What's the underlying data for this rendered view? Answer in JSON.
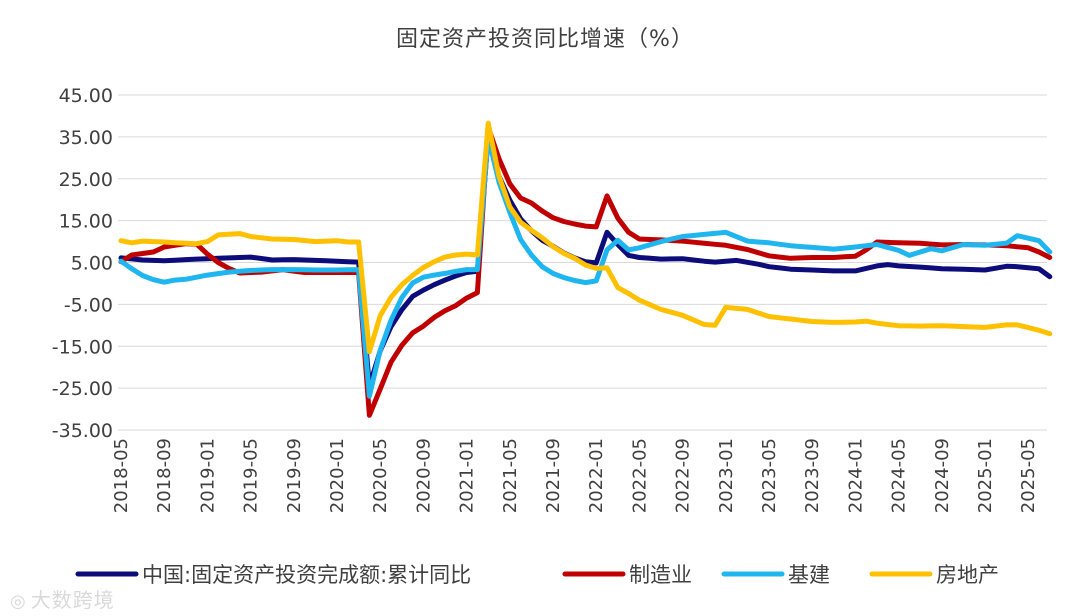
{
  "chart_data": {
    "type": "line",
    "title": "固定资产投资同比增速（%）",
    "xlabel": "",
    "ylabel": "",
    "ylim": [
      -35,
      45
    ],
    "y_ticks": [
      "45.00",
      "35.00",
      "25.00",
      "15.00",
      "5.00",
      "-5.00",
      "-15.00",
      "-25.00",
      "-35.00"
    ],
    "x_ticks": [
      "2018-05",
      "2018-09",
      "2019-01",
      "2019-05",
      "2019-09",
      "2020-01",
      "2020-05",
      "2020-09",
      "2021-01",
      "2021-05",
      "2021-09",
      "2022-01",
      "2022-05",
      "2022-09",
      "2023-01",
      "2023-05",
      "2023-09",
      "2024-01",
      "2024-05",
      "2024-09",
      "2025-01",
      "2025-05"
    ],
    "start_month": "2018-05",
    "n_points": 87,
    "gridlines": true,
    "legend_position": "bottom",
    "series": [
      {
        "name": "中国:固定资产投资完成额:累计同比",
        "color": "#0c0c7a",
        "anchors": [
          [
            0,
            6.1
          ],
          [
            2,
            5.6
          ],
          [
            4,
            5.4
          ],
          [
            6,
            5.7
          ],
          [
            8,
            5.9
          ],
          [
            10,
            6.1
          ],
          [
            12,
            6.3
          ],
          [
            14,
            5.6
          ],
          [
            16,
            5.7
          ],
          [
            18,
            5.5
          ],
          [
            20,
            5.3
          ],
          [
            21,
            5.2
          ],
          [
            22,
            5.1
          ],
          [
            23,
            -24.5
          ],
          [
            24,
            -16.1
          ],
          [
            25,
            -10.3
          ],
          [
            26,
            -6.3
          ],
          [
            27,
            -3.1
          ],
          [
            28,
            -1.6
          ],
          [
            29,
            -0.3
          ],
          [
            30,
            0.8
          ],
          [
            31,
            1.8
          ],
          [
            32,
            2.6
          ],
          [
            33,
            2.9
          ],
          [
            34,
            35.0
          ],
          [
            35,
            25.6
          ],
          [
            36,
            19.9
          ],
          [
            37,
            15.4
          ],
          [
            38,
            12.6
          ],
          [
            39,
            10.3
          ],
          [
            40,
            8.9
          ],
          [
            41,
            7.3
          ],
          [
            42,
            6.1
          ],
          [
            43,
            5.2
          ],
          [
            44,
            4.9
          ],
          [
            45,
            12.2
          ],
          [
            46,
            9.3
          ],
          [
            47,
            6.7
          ],
          [
            48,
            6.2
          ],
          [
            50,
            5.8
          ],
          [
            52,
            5.9
          ],
          [
            54,
            5.3
          ],
          [
            55,
            5.1
          ],
          [
            57,
            5.5
          ],
          [
            59,
            4.6
          ],
          [
            60,
            4.0
          ],
          [
            62,
            3.4
          ],
          [
            64,
            3.2
          ],
          [
            66,
            3.0
          ],
          [
            68,
            3.0
          ],
          [
            70,
            4.2
          ],
          [
            71,
            4.5
          ],
          [
            72,
            4.2
          ],
          [
            74,
            3.9
          ],
          [
            76,
            3.5
          ],
          [
            78,
            3.4
          ],
          [
            80,
            3.2
          ],
          [
            82,
            4.1
          ],
          [
            83,
            4.0
          ],
          [
            85,
            3.5
          ],
          [
            86,
            1.6
          ]
        ]
      },
      {
        "name": "制造业",
        "color": "#c00000",
        "anchors": [
          [
            0,
            5.2
          ],
          [
            1,
            6.8
          ],
          [
            3,
            7.5
          ],
          [
            4,
            8.7
          ],
          [
            6,
            9.5
          ],
          [
            7,
            9.4
          ],
          [
            8,
            7.0
          ],
          [
            9,
            5.0
          ],
          [
            10,
            3.6
          ],
          [
            11,
            2.5
          ],
          [
            13,
            2.7
          ],
          [
            15,
            3.3
          ],
          [
            17,
            2.6
          ],
          [
            19,
            2.6
          ],
          [
            21,
            2.6
          ],
          [
            22,
            2.6
          ],
          [
            23,
            -31.5
          ],
          [
            24,
            -25.2
          ],
          [
            25,
            -18.8
          ],
          [
            26,
            -14.8
          ],
          [
            27,
            -11.8
          ],
          [
            28,
            -10.2
          ],
          [
            29,
            -8.1
          ],
          [
            30,
            -6.5
          ],
          [
            31,
            -5.3
          ],
          [
            32,
            -3.5
          ],
          [
            33,
            -2.2
          ],
          [
            34,
            37.3
          ],
          [
            35,
            29.8
          ],
          [
            36,
            23.8
          ],
          [
            37,
            20.4
          ],
          [
            38,
            19.2
          ],
          [
            39,
            17.3
          ],
          [
            40,
            15.7
          ],
          [
            41,
            14.8
          ],
          [
            42,
            14.2
          ],
          [
            43,
            13.7
          ],
          [
            44,
            13.5
          ],
          [
            45,
            20.9
          ],
          [
            46,
            15.6
          ],
          [
            47,
            12.2
          ],
          [
            48,
            10.6
          ],
          [
            50,
            10.4
          ],
          [
            52,
            10.1
          ],
          [
            54,
            9.6
          ],
          [
            56,
            9.1
          ],
          [
            58,
            8.1
          ],
          [
            60,
            6.6
          ],
          [
            62,
            6.0
          ],
          [
            64,
            6.2
          ],
          [
            66,
            6.2
          ],
          [
            68,
            6.5
          ],
          [
            69,
            8.0
          ],
          [
            70,
            9.9
          ],
          [
            72,
            9.7
          ],
          [
            74,
            9.6
          ],
          [
            76,
            9.2
          ],
          [
            78,
            9.3
          ],
          [
            80,
            9.2
          ],
          [
            82,
            9.0
          ],
          [
            84,
            8.5
          ],
          [
            85,
            7.5
          ],
          [
            86,
            6.2
          ]
        ]
      },
      {
        "name": "基建",
        "color": "#1fb5ee",
        "anchors": [
          [
            0,
            5.3
          ],
          [
            1,
            3.5
          ],
          [
            2,
            1.9
          ],
          [
            3,
            0.9
          ],
          [
            4,
            0.3
          ],
          [
            5,
            0.8
          ],
          [
            6,
            1.0
          ],
          [
            8,
            2.0
          ],
          [
            10,
            2.7
          ],
          [
            12,
            3.1
          ],
          [
            14,
            3.3
          ],
          [
            16,
            3.3
          ],
          [
            18,
            3.2
          ],
          [
            20,
            3.2
          ],
          [
            22,
            3.3
          ],
          [
            23,
            -26.9
          ],
          [
            24,
            -16.0
          ],
          [
            25,
            -8.8
          ],
          [
            26,
            -3.4
          ],
          [
            27,
            0.1
          ],
          [
            28,
            1.5
          ],
          [
            29,
            2.0
          ],
          [
            30,
            2.4
          ],
          [
            31,
            2.9
          ],
          [
            32,
            3.3
          ],
          [
            33,
            3.3
          ],
          [
            34,
            35.0
          ],
          [
            35,
            24.2
          ],
          [
            36,
            17.0
          ],
          [
            37,
            10.5
          ],
          [
            38,
            6.8
          ],
          [
            39,
            4.0
          ],
          [
            40,
            2.4
          ],
          [
            41,
            1.4
          ],
          [
            42,
            0.7
          ],
          [
            43,
            0.2
          ],
          [
            44,
            0.6
          ],
          [
            45,
            8.0
          ],
          [
            46,
            10.3
          ],
          [
            47,
            8.0
          ],
          [
            48,
            8.5
          ],
          [
            50,
            10.0
          ],
          [
            52,
            11.2
          ],
          [
            54,
            11.7
          ],
          [
            56,
            12.2
          ],
          [
            58,
            10.1
          ],
          [
            60,
            9.7
          ],
          [
            62,
            9.0
          ],
          [
            64,
            8.6
          ],
          [
            66,
            8.2
          ],
          [
            68,
            8.7
          ],
          [
            70,
            9.3
          ],
          [
            72,
            7.9
          ],
          [
            73,
            6.7
          ],
          [
            75,
            8.3
          ],
          [
            76,
            7.8
          ],
          [
            78,
            9.3
          ],
          [
            80,
            9.1
          ],
          [
            82,
            9.6
          ],
          [
            83,
            11.4
          ],
          [
            85,
            10.2
          ],
          [
            86,
            7.5
          ]
        ]
      },
      {
        "name": "房地产",
        "color": "#ffc000",
        "anchors": [
          [
            0,
            10.2
          ],
          [
            1,
            9.7
          ],
          [
            2,
            10.1
          ],
          [
            4,
            9.9
          ],
          [
            5,
            9.7
          ],
          [
            7,
            9.5
          ],
          [
            8,
            10.0
          ],
          [
            9,
            11.6
          ],
          [
            11,
            11.9
          ],
          [
            12,
            11.2
          ],
          [
            14,
            10.6
          ],
          [
            16,
            10.5
          ],
          [
            18,
            10.0
          ],
          [
            20,
            10.2
          ],
          [
            21,
            9.9
          ],
          [
            22,
            9.9
          ],
          [
            23,
            -16.3
          ],
          [
            24,
            -7.7
          ],
          [
            25,
            -3.3
          ],
          [
            26,
            -0.3
          ],
          [
            27,
            1.9
          ],
          [
            28,
            3.8
          ],
          [
            29,
            5.2
          ],
          [
            30,
            6.3
          ],
          [
            31,
            6.8
          ],
          [
            32,
            7.0
          ],
          [
            33,
            6.8
          ],
          [
            34,
            38.3
          ],
          [
            35,
            25.6
          ],
          [
            36,
            18.3
          ],
          [
            37,
            14.6
          ],
          [
            38,
            12.7
          ],
          [
            39,
            10.9
          ],
          [
            40,
            8.8
          ],
          [
            41,
            7.2
          ],
          [
            42,
            6.0
          ],
          [
            43,
            4.4
          ],
          [
            44,
            3.6
          ],
          [
            45,
            3.7
          ],
          [
            46,
            -1.0
          ],
          [
            47,
            -2.4
          ],
          [
            48,
            -4.0
          ],
          [
            50,
            -6.2
          ],
          [
            52,
            -7.6
          ],
          [
            54,
            -9.8
          ],
          [
            55,
            -10.0
          ],
          [
            56,
            -5.7
          ],
          [
            58,
            -6.2
          ],
          [
            60,
            -7.9
          ],
          [
            62,
            -8.5
          ],
          [
            64,
            -9.1
          ],
          [
            66,
            -9.3
          ],
          [
            68,
            -9.2
          ],
          [
            69,
            -9.0
          ],
          [
            70,
            -9.5
          ],
          [
            72,
            -10.1
          ],
          [
            74,
            -10.2
          ],
          [
            76,
            -10.1
          ],
          [
            78,
            -10.3
          ],
          [
            80,
            -10.5
          ],
          [
            82,
            -9.9
          ],
          [
            83,
            -9.9
          ],
          [
            85,
            -11.2
          ],
          [
            86,
            -12.0
          ]
        ]
      }
    ]
  },
  "watermark": {
    "icon": "ring-logo-icon",
    "text": "大数跨境"
  }
}
